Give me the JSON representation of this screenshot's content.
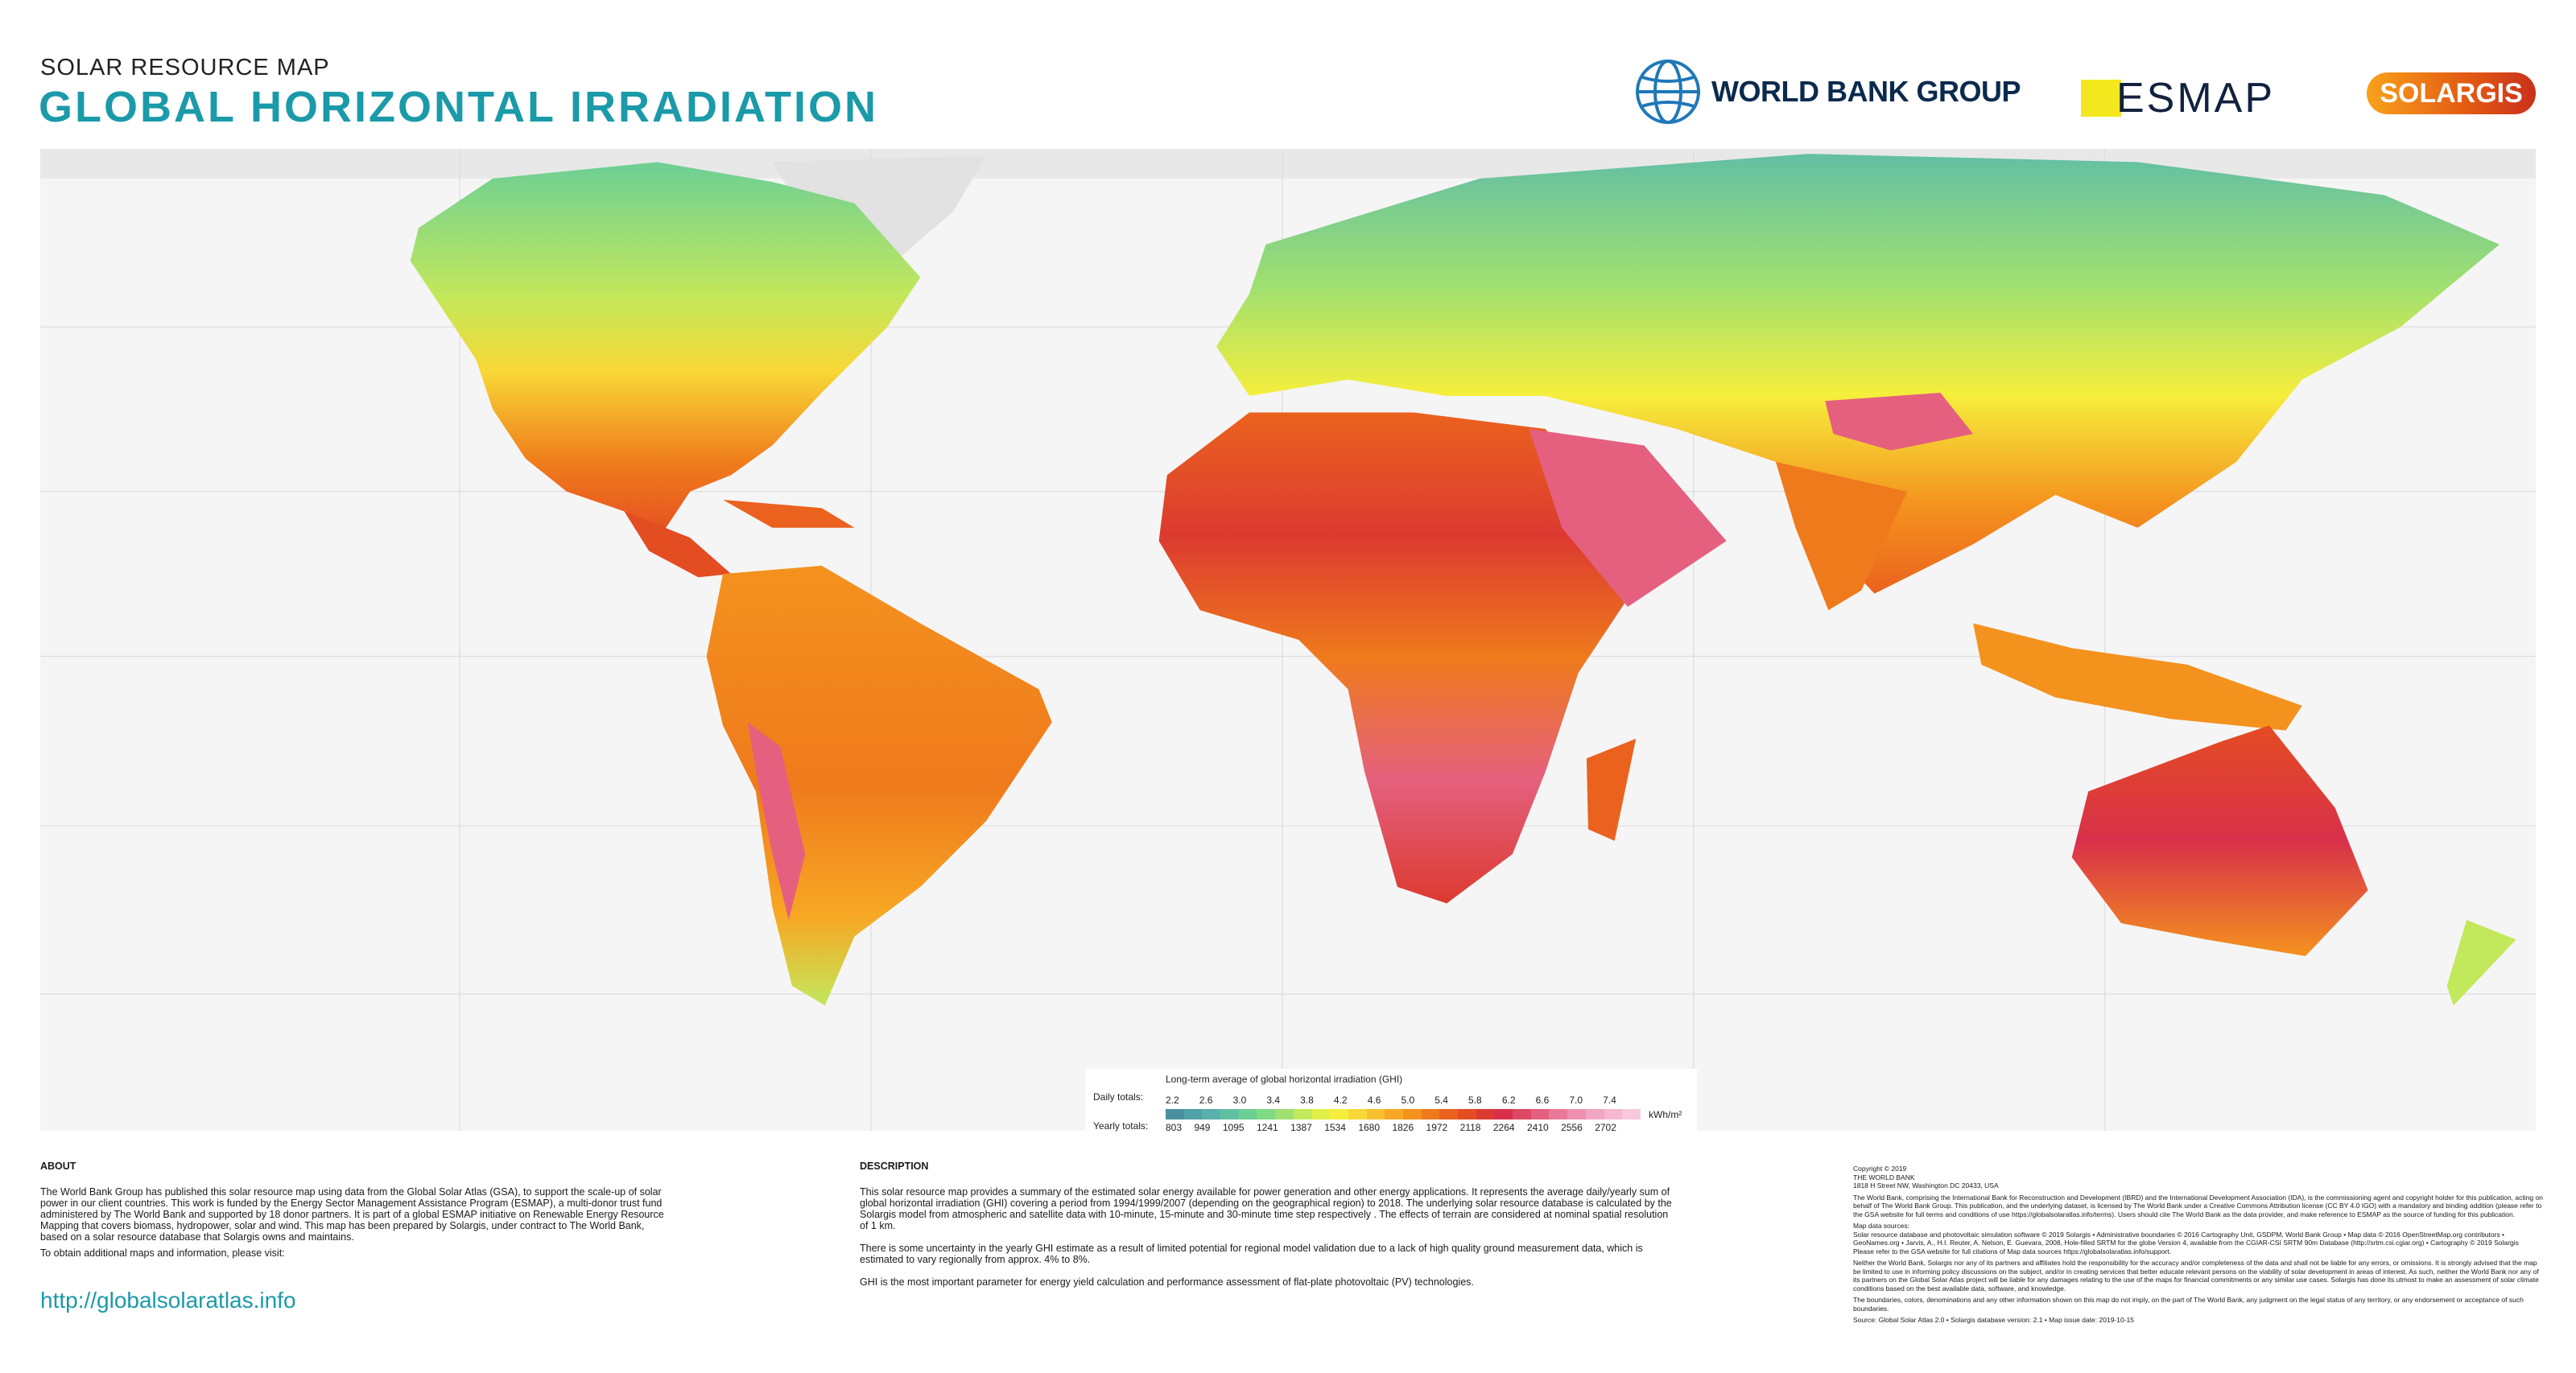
{
  "header": {
    "subtitle": "SOLAR RESOURCE MAP",
    "title": "GLOBAL HORIZONTAL IRRADIATION"
  },
  "logos": {
    "worldbank": "WORLD BANK GROUP",
    "esmap": "ESMAP",
    "solargis": "SOLARGIS"
  },
  "legend": {
    "title": "Long-term average of global horizontal irradiation (GHI)",
    "daily_label": "Daily totals:",
    "yearly_label": "Yearly totals:",
    "unit": "kWh/m²",
    "daily": [
      "2.2",
      "2.6",
      "3.0",
      "3.4",
      "3.8",
      "4.2",
      "4.6",
      "5.0",
      "5.4",
      "5.8",
      "6.2",
      "6.6",
      "7.0",
      "7.4"
    ],
    "yearly": [
      "803",
      "949",
      "1095",
      "1241",
      "1387",
      "1534",
      "1680",
      "1826",
      "1972",
      "2118",
      "2264",
      "2410",
      "2556",
      "2702"
    ],
    "colors": [
      "#4a8f9f",
      "#52a0a8",
      "#5ab0ab",
      "#62bfa4",
      "#6ccf94",
      "#7fda82",
      "#a0e070",
      "#c2e85c",
      "#e2ee48",
      "#f6ee3c",
      "#f8d836",
      "#f8c02e",
      "#f7a824",
      "#f4921e",
      "#ef7a1c",
      "#ea621e",
      "#e44c22",
      "#dc3a30",
      "#d8304a",
      "#de4864",
      "#e4607e",
      "#ea7898",
      "#ef90b0",
      "#f3a6c2",
      "#f6b8d0",
      "#f8c8dc"
    ]
  },
  "about": {
    "heading": "ABOUT",
    "body": "The World Bank Group has published this solar resource map using data from the Global Solar Atlas (GSA), to support the scale-up of solar power in our client countries. This work is funded by the Energy Sector Management Assistance Program (ESMAP), a multi-donor trust fund administered by The World Bank and supported by 18 donor partners. It is part of a global ESMAP initiative on Renewable Energy Resource Mapping that covers biomass, hydropower, solar and wind. This map has been prepared by Solargis, under contract to The World Bank, based on a solar resource database that Solargis owns and maintains.",
    "visit": "To obtain additional maps and information, please visit:",
    "link": "http://globalsolaratlas.info"
  },
  "description": {
    "heading": "DESCRIPTION",
    "p1": "This solar resource map provides a summary of the estimated solar energy available for power generation and other energy applications. It represents the average daily/yearly sum of global horizontal irradiation (GHI) covering a period from 1994/1999/2007 (depending on the geographical region) to 2018. The underlying solar resource database is calculated by the Solargis model from atmospheric and satellite data with 10-minute, 15-minute and 30-minute time step respectively . The effects of terrain are considered at nominal spatial resolution of 1 km.",
    "p2": "There is some uncertainty in the yearly GHI estimate as a result of limited potential for regional model validation due to a lack of high quality ground measurement data, which is estimated to vary regionally from approx. 4% to 8%.",
    "p3": "GHI is the most important parameter for energy yield calculation and performance assessment of flat-plate photovoltaic (PV) technologies."
  },
  "copyright": {
    "l1": "Copyright © 2019",
    "l2": "THE WORLD BANK",
    "l3": "1818 H Street NW, Washington DC 20433, USA",
    "p1": "The World Bank, comprising the International Bank for Reconstruction and Development (IBRD) and the International Development Association (IDA), is the commissioning agent and copyright holder for this publication, acting on behalf of The World Bank Group. This publication, and the underlying dataset, is licensed by The World Bank under a Creative Commons Attribution license (CC BY 4.0 IGO) with a mandatory and binding addition (please refer to the GSA website for full terms and conditions of use https://globalsolaratlas.info/terms). Users should cite The World Bank as the data provider, and make reference to ESMAP as the source of funding for this publication.",
    "p2_title": "Map data sources:",
    "p2": "Solar resource database and photovoltaic simulation software © 2019 Solargis • Administrative boundaries © 2016 Cartography Unit, GSDPM, World Bank Group • Map data © 2016 OpenStreetMap.org contributors • GeoNames.org • Jarvis, A., H.I. Reuter, A. Nelson, E. Guevara, 2008, Hole-filled SRTM for the globe Version 4, available from the CGIAR-CSI SRTM 90m Database (http://srtm.csi.cgiar.org) • Cartography © 2019 Solargis",
    "p2b": "Please refer to the GSA website for full citations of Map data sources https://globalsolaratlas.info/support.",
    "p3": "Neither the World Bank, Solargis nor any of its partners and affiliates hold the responsibility for the accuracy and/or completeness of the data and shall not be liable for any errors, or omissions. It is strongly advised that the map be limited to use in informing policy discussions on the subject, and/or in creating services that better educate relevant persons on the viability of solar development in areas of interest. As such, neither the World Bank nor any of its partners on the Global Solar Atlas project will be liable for any damages relating to the use of the maps for financial commitments or any similar use cases. Solargis has done its utmost to make an assessment of solar climate conditions based on the best available data, software, and knowledge.",
    "p4": "The boundaries, colors, denominations and any other information shown on this map do not imply, on the part of The World Bank, any judgment on the legal status of any territory, or any endorsement or acceptance of such boundaries.",
    "p5": "Source: Global Solar Atlas 2.0 • Solargis database version: 2.1 • Map issue date: 2019-10-15"
  }
}
